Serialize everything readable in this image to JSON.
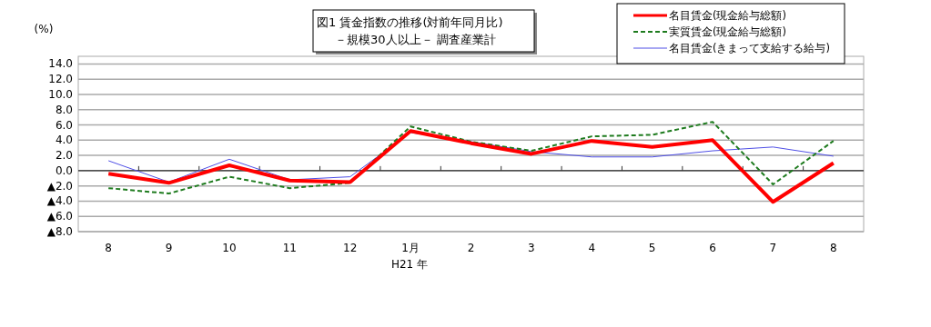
{
  "chart_data": {
    "type": "line",
    "title": "図1 賃金指数の推移(対前年同月比)",
    "subtitle": "－規模30人以上－ 調査産業計",
    "ylabel": "(%)",
    "categories": [
      "8",
      "9",
      "10",
      "11",
      "12",
      "1月",
      "2",
      "3",
      "4",
      "5",
      "6",
      "7",
      "8"
    ],
    "series": [
      {
        "name": "名目賃金(現金給与総額)",
        "color": "#ff0000",
        "line_style": "solid",
        "values": [
          -0.4,
          -1.6,
          0.7,
          -1.3,
          -1.5,
          5.2,
          3.6,
          2.2,
          3.9,
          3.1,
          4.0,
          -4.1,
          1.0
        ]
      },
      {
        "name": "実質賃金(現金給与総額)",
        "color": "#1e7b1e",
        "line_style": "dashed",
        "values": [
          -2.3,
          -3.0,
          -0.8,
          -2.3,
          -1.6,
          5.8,
          3.8,
          2.6,
          4.5,
          4.7,
          6.4,
          -1.8,
          3.9
        ]
      },
      {
        "name": "名目賃金(きまって支給する給与)",
        "color": "#4f4fe6",
        "line_style": "solid",
        "values": [
          1.3,
          -1.5,
          1.5,
          -1.2,
          -0.8,
          5.0,
          3.8,
          2.5,
          1.8,
          1.8,
          2.6,
          3.1,
          1.9
        ]
      }
    ],
    "ylim": [
      -8,
      15
    ],
    "yticks": [
      {
        "value": -8,
        "label": "▲8.0"
      },
      {
        "value": -6,
        "label": "▲6.0"
      },
      {
        "value": -4,
        "label": "▲4.0"
      },
      {
        "value": -2,
        "label": "▲2.0"
      },
      {
        "value": 0,
        "label": "0.0"
      },
      {
        "value": 2,
        "label": "2.0"
      },
      {
        "value": 4,
        "label": "4.0"
      },
      {
        "value": 6,
        "label": "6.0"
      },
      {
        "value": 8,
        "label": "8.0"
      },
      {
        "value": 10,
        "label": "10.0"
      },
      {
        "value": 12,
        "label": "12.0"
      },
      {
        "value": 14,
        "label": "14.0"
      }
    ],
    "annotations": [
      "H21 年"
    ],
    "grid": "y",
    "legend": "top right"
  }
}
